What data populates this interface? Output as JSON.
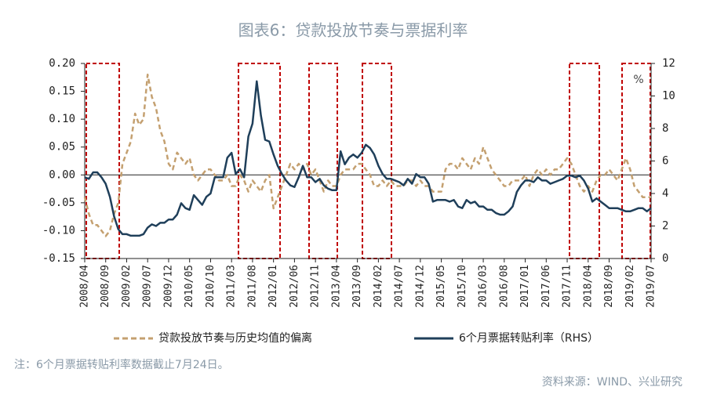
{
  "chart_data": {
    "type": "line",
    "title": "图表6：贷款投放节奏与票据利率",
    "note": "注：6个月票据转贴利率数据截止7月24日。",
    "source": "资料来源：WIND、兴业研究",
    "y2_label": "%",
    "categories": [
      "2008/04",
      null,
      null,
      null,
      null,
      "2008/09",
      null,
      null,
      null,
      null,
      "2009/02",
      null,
      null,
      null,
      null,
      "2009/07",
      null,
      null,
      null,
      null,
      "2009/12",
      null,
      null,
      null,
      null,
      "2010/05",
      null,
      null,
      null,
      null,
      "2010/10",
      null,
      null,
      null,
      null,
      "2011/03",
      null,
      null,
      null,
      null,
      "2011/08",
      null,
      null,
      null,
      null,
      "2012/01",
      null,
      null,
      null,
      null,
      "2012/06",
      null,
      null,
      null,
      null,
      "2012/11",
      null,
      null,
      null,
      null,
      "2013/04",
      null,
      null,
      null,
      null,
      "2013/09",
      null,
      null,
      null,
      null,
      "2014/02",
      null,
      null,
      null,
      null,
      "2014/07",
      null,
      null,
      null,
      null,
      "2014/12",
      null,
      null,
      null,
      null,
      "2015/05",
      null,
      null,
      null,
      null,
      "2015/10",
      null,
      null,
      null,
      null,
      "2016/03",
      null,
      null,
      null,
      null,
      "2016/08",
      null,
      null,
      null,
      null,
      "2017/01",
      null,
      null,
      null,
      null,
      "2017/06",
      null,
      null,
      null,
      null,
      "2017/11",
      null,
      null,
      null,
      null,
      "2018/04",
      null,
      null,
      null,
      null,
      "2018/09",
      null,
      null,
      null,
      null,
      "2019/02",
      null,
      null,
      null,
      null,
      "2019/07"
    ],
    "series": [
      {
        "name": "贷款投放节奏与历史均值的偏离",
        "color": "#c4a070",
        "dash": true,
        "axis": "y",
        "values": [
          -0.04,
          -0.07,
          -0.09,
          -0.09,
          -0.1,
          -0.11,
          -0.1,
          -0.07,
          -0.05,
          0.02,
          0.04,
          0.06,
          0.11,
          0.09,
          0.1,
          0.18,
          0.14,
          0.12,
          0.08,
          0.06,
          0.02,
          0.01,
          0.04,
          0.03,
          0.02,
          0.03,
          0.0,
          -0.01,
          0.0,
          0.01,
          0.01,
          0.0,
          -0.01,
          -0.01,
          0.0,
          -0.02,
          -0.02,
          0.0,
          -0.01,
          -0.03,
          -0.01,
          -0.02,
          -0.03,
          -0.01,
          0.0,
          -0.06,
          -0.04,
          -0.02,
          0.0,
          0.02,
          0.01,
          0.02,
          0.01,
          0.02,
          0.0,
          0.01,
          -0.01,
          -0.03,
          -0.01,
          -0.02,
          -0.02,
          0.0,
          0.01,
          0.01,
          0.01,
          0.02,
          0.02,
          0.01,
          0.0,
          -0.02,
          -0.02,
          -0.01,
          -0.02,
          -0.01,
          -0.02,
          -0.02,
          -0.02,
          -0.01,
          -0.01,
          -0.02,
          -0.01,
          -0.02,
          -0.02,
          -0.03,
          -0.03,
          -0.03,
          0.01,
          0.02,
          0.02,
          0.01,
          0.03,
          0.02,
          0.01,
          0.03,
          0.02,
          0.05,
          0.03,
          0.01,
          0.0,
          -0.01,
          -0.02,
          -0.02,
          -0.01,
          -0.01,
          -0.01,
          0.0,
          -0.02,
          0.0,
          0.01,
          0.0,
          0.01,
          0.0,
          0.01,
          0.01,
          0.02,
          0.03,
          0.02,
          0.0,
          -0.02,
          -0.03,
          -0.02,
          -0.03,
          -0.01,
          0.0,
          0.0,
          0.01,
          0.0,
          -0.01,
          0.01,
          0.03,
          0.01,
          -0.02,
          -0.03,
          -0.04,
          -0.04,
          -0.04
        ]
      },
      {
        "name": "6个月票据转贴利率（RHS）",
        "color": "#1f3f5a",
        "dash": false,
        "axis": "y2",
        "values": [
          5.0,
          4.9,
          5.3,
          5.3,
          5.0,
          4.6,
          3.8,
          2.6,
          1.8,
          1.5,
          1.5,
          1.4,
          1.4,
          1.4,
          1.5,
          1.9,
          2.1,
          2.0,
          2.2,
          2.2,
          2.4,
          2.4,
          2.7,
          3.4,
          3.1,
          3.0,
          3.9,
          3.6,
          3.3,
          3.8,
          4.0,
          5.0,
          5.0,
          5.0,
          6.2,
          6.5,
          5.2,
          5.5,
          5.0,
          7.5,
          8.3,
          10.9,
          8.8,
          7.3,
          7.2,
          6.4,
          5.7,
          5.2,
          4.8,
          4.5,
          4.4,
          5.0,
          5.7,
          5.0,
          5.0,
          4.7,
          4.9,
          4.5,
          4.3,
          4.2,
          4.2,
          6.6,
          5.8,
          6.2,
          6.4,
          6.2,
          6.5,
          7.0,
          6.8,
          6.4,
          5.7,
          5.2,
          4.9,
          4.9,
          4.8,
          4.7,
          4.5,
          4.9,
          4.6,
          5.2,
          5.0,
          5.0,
          4.6,
          3.5,
          3.6,
          3.6,
          3.6,
          3.5,
          3.6,
          3.2,
          3.1,
          3.6,
          3.4,
          3.5,
          3.2,
          3.2,
          3.0,
          3.0,
          2.8,
          2.7,
          2.7,
          2.9,
          3.2,
          4.1,
          4.5,
          4.8,
          4.8,
          4.7,
          5.0,
          4.8,
          4.8,
          4.6,
          4.7,
          4.8,
          4.9,
          5.1,
          5.1,
          5.0,
          5.1,
          4.8,
          4.3,
          3.5,
          3.7,
          3.5,
          3.3,
          3.1,
          3.1,
          3.1,
          3.0,
          2.9,
          2.9,
          3.0,
          3.1,
          3.1,
          2.9,
          3.1
        ]
      }
    ],
    "ylim": [
      -0.15,
      0.2
    ],
    "yticks": [
      {
        "value": -0.15,
        "label": "-0.15"
      },
      {
        "value": -0.1,
        "label": "-0.10"
      },
      {
        "value": -0.05,
        "label": "-0.05"
      },
      {
        "value": 0,
        "label": "0.00"
      },
      {
        "value": 0.05,
        "label": "0.05"
      },
      {
        "value": 0.1,
        "label": "0.10"
      },
      {
        "value": 0.15,
        "label": "0.15"
      },
      {
        "value": 0.2,
        "label": "0.20"
      }
    ],
    "y2lim": [
      0,
      12
    ],
    "y2ticks": [
      0,
      2,
      4,
      6,
      8,
      10,
      12
    ]
  }
}
